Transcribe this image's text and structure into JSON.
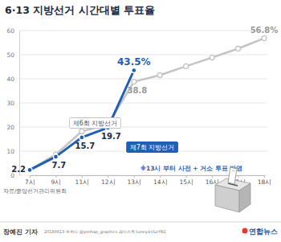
{
  "chart_data": {
    "type": "line",
    "title": "6·13 지방선거 시간대별 투표율",
    "categories": [
      "7시",
      "9시",
      "11시",
      "12시",
      "13시",
      "14시",
      "15시",
      "16시",
      "17시",
      "18시"
    ],
    "series": [
      {
        "name": "제6회 지방선거",
        "color": "#c4c4c4",
        "marker": "circle",
        "values": [
          2.2,
          8.6,
          18.2,
          21.0,
          38.8,
          41.5,
          45.2,
          48.8,
          52.5,
          56.8
        ],
        "value_labels": [
          null,
          null,
          null,
          null,
          "38.8",
          null,
          null,
          null,
          null,
          "56.8%"
        ]
      },
      {
        "name": "제7회 지방선거",
        "color": "#1f5fb4",
        "marker": "circle",
        "values": [
          2.2,
          7.7,
          15.7,
          19.7,
          43.5,
          null,
          null,
          null,
          null,
          null
        ],
        "value_labels": [
          "2.2",
          "7.7",
          "15.7",
          "19.7",
          "43.5%",
          null,
          null,
          null,
          null,
          null
        ]
      }
    ],
    "ylim": [
      0,
      60
    ],
    "yticks": [
      0,
      10,
      20,
      30,
      40,
      50,
      60
    ],
    "grid": true,
    "data_labels": true,
    "annotation": "※13시 부터 사전 + 거소 투표 반영",
    "source": "자료/중앙선거관리위원회",
    "footer": [
      "장예진 기자",
      "20180613 트위터 @yonhap_graphics 페이스북 tuney.kr/LeYN1",
      "연합뉴스"
    ]
  }
}
